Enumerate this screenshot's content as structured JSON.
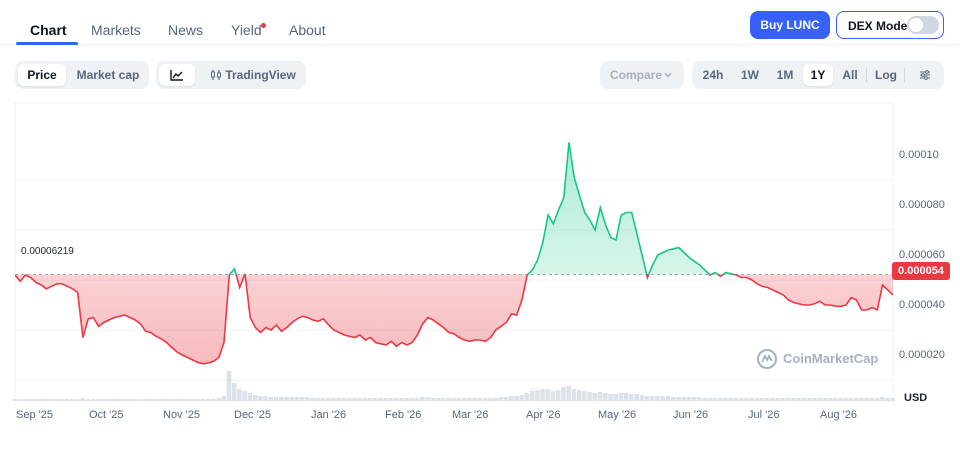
{
  "tabs": [
    {
      "label": "Chart",
      "active": true
    },
    {
      "label": "Markets",
      "active": false
    },
    {
      "label": "News",
      "active": false
    },
    {
      "label": "Yield",
      "active": false,
      "badge": true
    },
    {
      "label": "About",
      "active": false
    }
  ],
  "buttons": {
    "buy": "Buy LUNC",
    "dex": "DEX Mode",
    "dex_enabled": false
  },
  "view_toggle": {
    "price": "Price",
    "market_cap": "Market cap",
    "selected": "Price"
  },
  "chart_mode": {
    "tradingview": "TradingView"
  },
  "compare": {
    "label": "Compare"
  },
  "ranges": [
    "24h",
    "1W",
    "1M",
    "1Y",
    "All"
  ],
  "selected_range": "1Y",
  "scale": {
    "log": "Log"
  },
  "colors": {
    "up": "#16c784",
    "down": "#ea3943",
    "accent": "#3861fb"
  },
  "chart_data": {
    "type": "area",
    "reference_label": "0.00006219",
    "reference_value": 6.219e-05,
    "current_label": "0.000054",
    "current_value": 5.4e-05,
    "currency": "USD",
    "watermark": "CoinMarketCap",
    "y_ticks": [
      "0.000020",
      "0.000040",
      "0.000060",
      "0.000080",
      "0.00010"
    ],
    "y_tick_values": [
      2e-05,
      4e-05,
      6e-05,
      8e-05,
      0.0001
    ],
    "x_ticks": [
      "Sep '25",
      "Oct '25",
      "Nov '25",
      "Dec '25",
      "Jan '26",
      "Feb '26",
      "Mar '26",
      "Apr '26",
      "May '26",
      "Jun '26",
      "Jul '26",
      "Aug '26"
    ],
    "ylim": [
      1e-05,
      0.00012
    ],
    "series": [
      {
        "values": [
          6.2e-05,
          5.95e-05,
          6.2e-05,
          6.1e-05,
          5.9e-05,
          5.8e-05,
          5.65e-05,
          5.75e-05,
          5.85e-05,
          5.85e-05,
          5.75e-05,
          5.65e-05,
          5.5e-05,
          3.7e-05,
          4.45e-05,
          4.5e-05,
          4.15e-05,
          4.3e-05,
          4.4e-05,
          4.5e-05,
          4.55e-05,
          4.6e-05,
          4.5e-05,
          4.4e-05,
          4.25e-05,
          3.95e-05,
          3.9e-05,
          3.75e-05,
          3.65e-05,
          3.5e-05,
          3.3e-05,
          3.12e-05,
          3e-05,
          2.9e-05,
          2.8e-05,
          2.7e-05,
          2.65e-05,
          2.68e-05,
          2.75e-05,
          2.9e-05,
          3.5e-05,
          6.2e-05,
          6.45e-05,
          5.7e-05,
          6.25e-05,
          4.5e-05,
          4.1e-05,
          3.9e-05,
          4.1e-05,
          4e-05,
          4.2e-05,
          3.95e-05,
          4.1e-05,
          4.3e-05,
          4.45e-05,
          4.55e-05,
          4.5e-05,
          4.4e-05,
          4.35e-05,
          4.45e-05,
          4.2e-05,
          4e-05,
          3.9e-05,
          3.8e-05,
          3.75e-05,
          3.7e-05,
          3.8e-05,
          3.6e-05,
          3.7e-05,
          3.5e-05,
          3.45e-05,
          3.4e-05,
          3.55e-05,
          3.35e-05,
          3.5e-05,
          3.4e-05,
          3.5e-05,
          3.8e-05,
          4.25e-05,
          4.5e-05,
          4.4e-05,
          4.25e-05,
          4.1e-05,
          3.9e-05,
          3.85e-05,
          3.7e-05,
          3.6e-05,
          3.55e-05,
          3.6e-05,
          3.6e-05,
          3.55e-05,
          3.7e-05,
          4e-05,
          4.15e-05,
          4.3e-05,
          4.65e-05,
          4.6e-05,
          5.2e-05,
          6.2e-05,
          6.4e-05,
          6.8e-05,
          7.5e-05,
          8.6e-05,
          8.25e-05,
          8.8e-05,
          9.3e-05,
          0.000115,
          0.000101,
          9.4e-05,
          8.7e-05,
          8.4e-05,
          8e-05,
          8.9e-05,
          8.2e-05,
          7.7e-05,
          7.6e-05,
          8.6e-05,
          8.7e-05,
          8.7e-05,
          7.85e-05,
          7e-05,
          6.1e-05,
          6.6e-05,
          7e-05,
          7.1e-05,
          7.2e-05,
          7.25e-05,
          7.3e-05,
          7.1e-05,
          6.9e-05,
          6.75e-05,
          6.6e-05,
          6.4e-05,
          6.2e-05,
          6.3e-05,
          6.15e-05,
          6.3e-05,
          6.25e-05,
          6.2e-05,
          6.1e-05,
          6.1e-05,
          6e-05,
          5.85e-05,
          5.75e-05,
          5.7e-05,
          5.6e-05,
          5.5e-05,
          5.4e-05,
          5.2e-05,
          5.1e-05,
          5.05e-05,
          5e-05,
          5e-05,
          5.05e-05,
          5.15e-05,
          5e-05,
          5e-05,
          4.95e-05,
          4.95e-05,
          5e-05,
          5.3e-05,
          5.2e-05,
          4.8e-05,
          4.8e-05,
          4.9e-05,
          4.8e-05,
          5.8e-05,
          5.6e-05,
          5.4e-05
        ],
        "volume": [
          2,
          2,
          2,
          2,
          2,
          2,
          2,
          2,
          2,
          2,
          2,
          2,
          2,
          3,
          2,
          2,
          2,
          2,
          2,
          2,
          2,
          2,
          2,
          2,
          2,
          2,
          2,
          2,
          2,
          2,
          2,
          2,
          2,
          2,
          2,
          2,
          2,
          2,
          2,
          3,
          5,
          30,
          18,
          12,
          10,
          8,
          6,
          5,
          5,
          4,
          4,
          4,
          4,
          4,
          4,
          4,
          4,
          3,
          3,
          3,
          3,
          3,
          3,
          3,
          3,
          3,
          3,
          3,
          3,
          3,
          3,
          3,
          3,
          3,
          3,
          3,
          3,
          3,
          4,
          4,
          3,
          3,
          3,
          3,
          3,
          3,
          3,
          3,
          3,
          3,
          3,
          3,
          3,
          4,
          4,
          5,
          5,
          6,
          8,
          10,
          11,
          12,
          12,
          10,
          11,
          14,
          15,
          12,
          11,
          10,
          9,
          8,
          9,
          8,
          7,
          7,
          8,
          8,
          7,
          7,
          6,
          5,
          5,
          5,
          5,
          5,
          4,
          4,
          4,
          4,
          4,
          4,
          3,
          3,
          3,
          3,
          3,
          3,
          3,
          3,
          3,
          3,
          3,
          3,
          3,
          3,
          3,
          3,
          3,
          3,
          3,
          3,
          3,
          3,
          3,
          3,
          3,
          3,
          3,
          3,
          3,
          3,
          3,
          3,
          3,
          3,
          4,
          3,
          3
        ]
      }
    ]
  }
}
